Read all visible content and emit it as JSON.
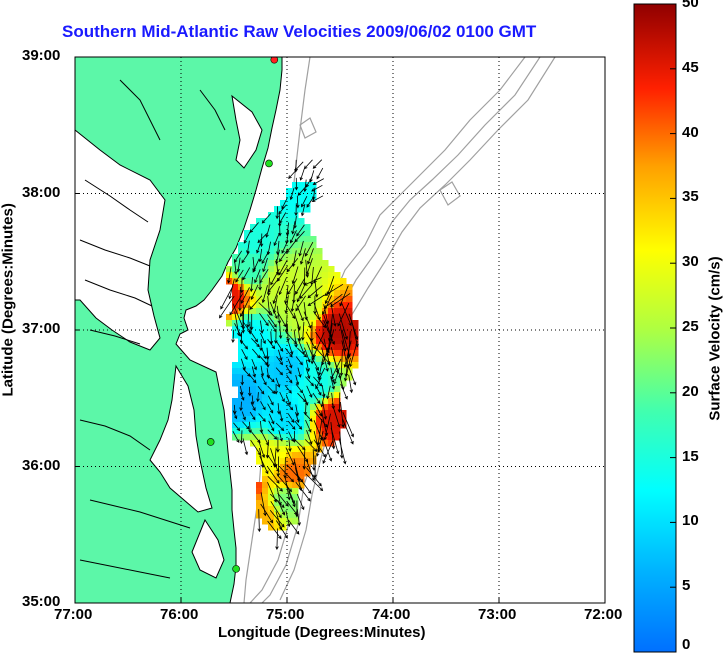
{
  "title": "Southern Mid-Atlantic Raw Velocities 2009/06/02 0100 GMT",
  "xlabel": "Longitude (Degrees:Minutes)",
  "ylabel": "Latitude (Degrees:Minutes)",
  "colorbar_label": "Surface Velocity (cm/s)",
  "x_ticks": [
    "77:00",
    "76:00",
    "75:00",
    "74:00",
    "73:00",
    "72:00"
  ],
  "y_ticks": [
    "39:00",
    "38:00",
    "37:00",
    "36:00",
    "35:00"
  ],
  "colorbar_ticks": [
    "50",
    "45",
    "40",
    "35",
    "30",
    "25",
    "20",
    "15",
    "10",
    "5",
    "0"
  ],
  "colors": {
    "land": "#5cf7a8",
    "coast": "#000000",
    "bathymetry": "#a0a0a0",
    "title": "#1a1aff",
    "grid": "#000000"
  },
  "map_extent": {
    "lon_range": [
      -77,
      -72
    ],
    "lat_range": [
      35,
      39
    ]
  },
  "chart_data": {
    "type": "heatmap",
    "title": "Southern Mid-Atlantic Raw Velocities 2009/06/02 0100 GMT",
    "xlabel": "Longitude (Degrees:Minutes)",
    "ylabel": "Latitude (Degrees:Minutes)",
    "xlim": [
      -77,
      -72
    ],
    "ylim": [
      35,
      39
    ],
    "color_range": [
      0,
      50
    ],
    "color_units": "cm/s",
    "grid": true,
    "colormap": "jet",
    "sites": [
      {
        "lon": -75.12,
        "lat": 38.98,
        "color": "#ff2020"
      },
      {
        "lon": -75.17,
        "lat": 38.22,
        "color": "#20e020"
      },
      {
        "lon": -75.72,
        "lat": 36.18,
        "color": "#20e020"
      },
      {
        "lon": -75.48,
        "lat": 35.25,
        "color": "#20e020"
      }
    ],
    "velocity_regions": [
      {
        "lon": -75.55,
        "lat": 37.25,
        "speed": 45
      },
      {
        "lon": -75.35,
        "lat": 37.45,
        "speed": 18
      },
      {
        "lon": -75.05,
        "lat": 37.35,
        "speed": 27
      },
      {
        "lon": -74.85,
        "lat": 37.15,
        "speed": 26
      },
      {
        "lon": -74.55,
        "lat": 37.0,
        "speed": 48
      },
      {
        "lon": -75.35,
        "lat": 36.95,
        "speed": 12
      },
      {
        "lon": -75.0,
        "lat": 36.7,
        "speed": 8
      },
      {
        "lon": -74.75,
        "lat": 36.6,
        "speed": 14
      },
      {
        "lon": -75.45,
        "lat": 36.5,
        "speed": 6
      },
      {
        "lon": -75.0,
        "lat": 36.35,
        "speed": 10
      },
      {
        "lon": -74.55,
        "lat": 36.35,
        "speed": 46
      },
      {
        "lon": -75.15,
        "lat": 36.05,
        "speed": 30
      },
      {
        "lon": -74.95,
        "lat": 35.95,
        "speed": 40
      },
      {
        "lon": -75.4,
        "lat": 35.85,
        "speed": 44
      },
      {
        "lon": -75.25,
        "lat": 35.65,
        "speed": 36
      },
      {
        "lon": -75.0,
        "lat": 35.75,
        "speed": 22
      },
      {
        "lon": -75.3,
        "lat": 37.65,
        "speed": 15
      },
      {
        "lon": -74.95,
        "lat": 38.05,
        "speed": 13
      }
    ]
  }
}
